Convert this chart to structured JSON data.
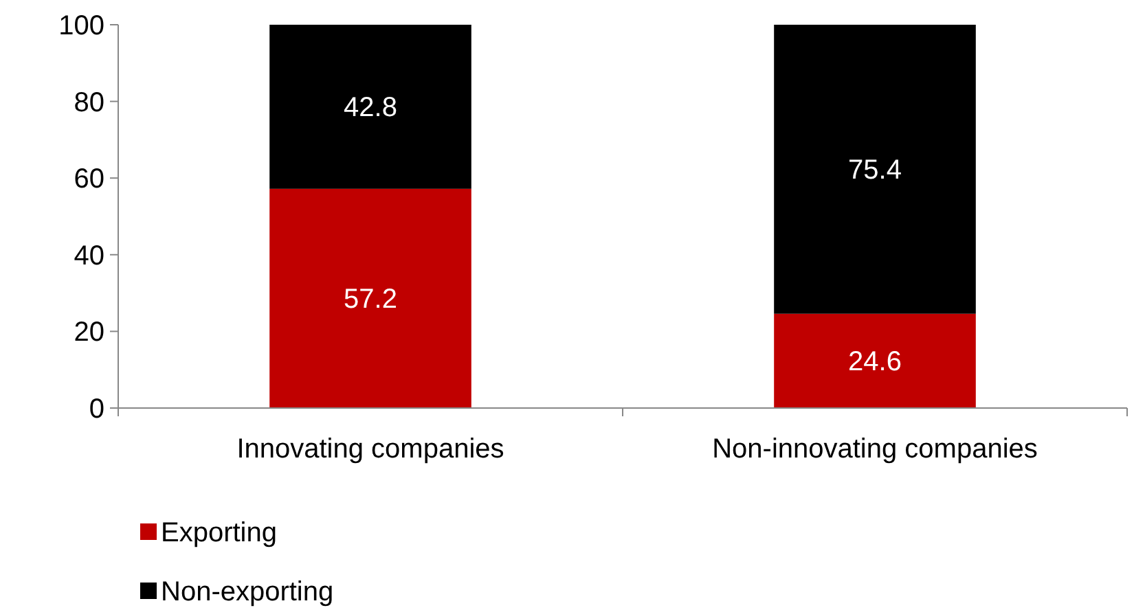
{
  "chart_data": {
    "type": "bar",
    "stacked": true,
    "categories": [
      "Innovating companies",
      "Non-innovating companies"
    ],
    "series": [
      {
        "name": "Exporting",
        "color": "#c00000",
        "values": [
          57.2,
          24.6
        ]
      },
      {
        "name": "Non-exporting",
        "color": "#000000",
        "values": [
          42.8,
          75.4
        ]
      }
    ],
    "ylim": [
      0,
      100
    ],
    "yticks": [
      0,
      20,
      40,
      60,
      80,
      100
    ],
    "data_labels": true,
    "legend": "bottom"
  }
}
